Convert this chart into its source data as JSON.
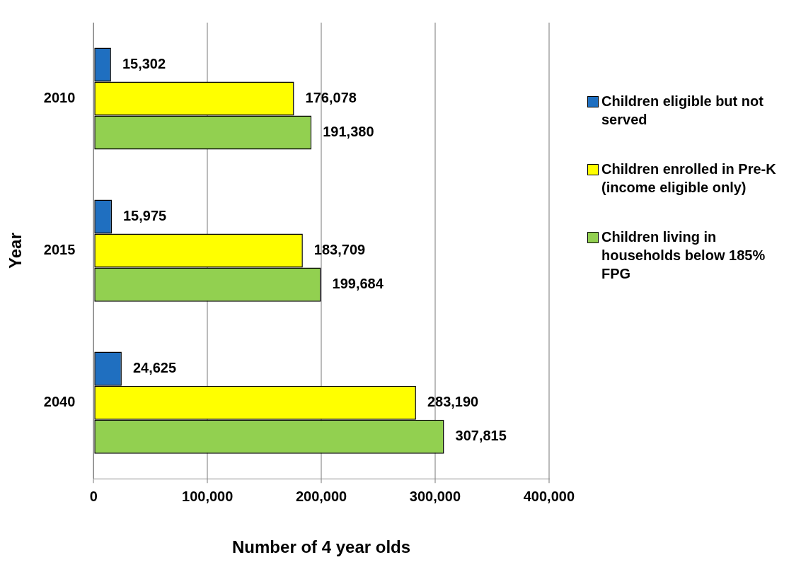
{
  "chart_data": {
    "type": "bar",
    "orientation": "horizontal",
    "xlabel": "Number of 4 year olds",
    "ylabel": "Year",
    "categories": [
      "2010",
      "2015",
      "2040"
    ],
    "series": [
      {
        "name": "Children eligible but not served",
        "color": "#1f6fc0",
        "values": [
          15302,
          15975,
          24625
        ],
        "value_labels": [
          "15,302",
          "15,975",
          "24,625"
        ]
      },
      {
        "name": "Children enrolled in Pre-K (income eligible only)",
        "color": "#ffff00",
        "values": [
          176078,
          183709,
          283190
        ],
        "value_labels": [
          "176,078",
          "183,709",
          "283,190"
        ]
      },
      {
        "name": "Children living in households below 185% FPG",
        "color": "#92d050",
        "values": [
          191380,
          199684,
          307815
        ],
        "value_labels": [
          "191,380",
          "199,684",
          "307,815"
        ]
      }
    ],
    "xlim": [
      0,
      400000
    ],
    "xticks": [
      0,
      {
        "value": 100000,
        "label": "100,000"
      },
      {
        "value": 200000,
        "label": "200,000"
      },
      {
        "value": 300000,
        "label": "300,000"
      },
      {
        "value": 400000,
        "label": "400,000"
      }
    ],
    "grid": "x",
    "legend": "right"
  }
}
